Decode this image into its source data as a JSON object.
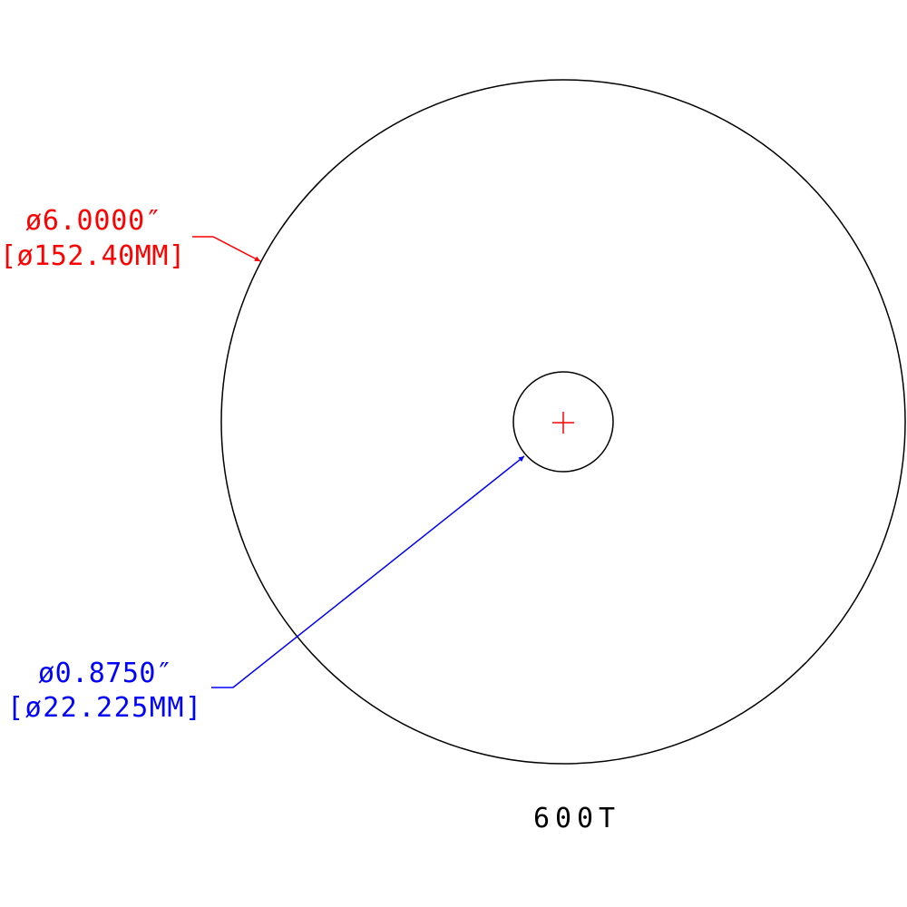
{
  "drawing": {
    "outer_diameter": {
      "inch": "ø6.0000″",
      "mm": "[ø152.40MM]",
      "color": "#ff0000"
    },
    "inner_diameter": {
      "inch": "ø0.8750″",
      "mm": "[ø22.225MM]",
      "color": "#0000ff"
    },
    "part_label": "600T",
    "line_color": "#000000",
    "center_mark_color": "#ff0000"
  }
}
